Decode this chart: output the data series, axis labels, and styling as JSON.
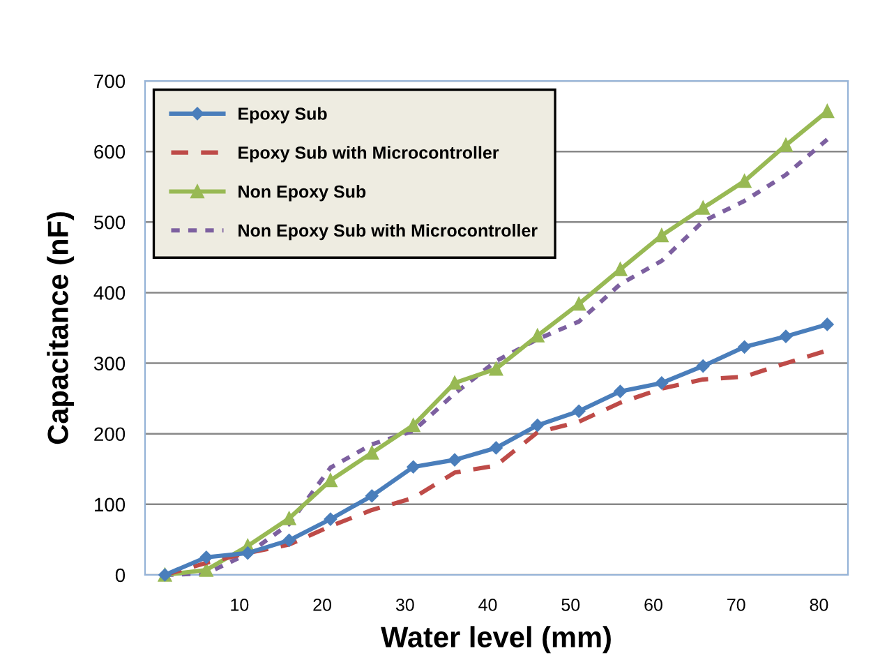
{
  "chart_data": {
    "type": "line",
    "xlabel": "Water level (mm)",
    "ylabel": "Capacitance (nF)",
    "x": [
      1,
      6,
      11,
      16,
      21,
      26,
      31,
      36,
      41,
      46,
      51,
      56,
      61,
      66,
      71,
      76,
      81
    ],
    "xlim": [
      -1.4,
      83.5
    ],
    "xticks": [
      10,
      20,
      30,
      40,
      50,
      60,
      70,
      80
    ],
    "ylim": [
      0,
      700
    ],
    "yticks": [
      0,
      100,
      200,
      300,
      400,
      500,
      600,
      700
    ],
    "grid": "y",
    "legend": "top left",
    "series": [
      {
        "name": "Epoxy Sub",
        "color": "#4a7ebb",
        "marker": "diamond",
        "line_style": "solid",
        "values": [
          0,
          25,
          31,
          49,
          79,
          112,
          153,
          163,
          180,
          212,
          232,
          260,
          272,
          296,
          323,
          338,
          355
        ]
      },
      {
        "name": "Epoxy Sub with Microcontroller",
        "color": "#be4b48",
        "marker": "none",
        "line_style": "dashed",
        "values": [
          0,
          17,
          31,
          43,
          69,
          92,
          109,
          145,
          155,
          202,
          217,
          244,
          264,
          277,
          281,
          300,
          318
        ]
      },
      {
        "name": "Non Epoxy Sub",
        "color": "#98b954",
        "marker": "triangle",
        "line_style": "solid",
        "values": [
          0,
          7,
          41,
          80,
          134,
          173,
          212,
          272,
          292,
          339,
          384,
          433,
          481,
          520,
          558,
          609,
          657
        ]
      },
      {
        "name": "Non Epoxy Sub with Microcontroller",
        "color": "#7d60a0",
        "marker": "none",
        "line_style": "dotted",
        "values": [
          0,
          2,
          30,
          72,
          152,
          185,
          204,
          257,
          303,
          334,
          359,
          412,
          445,
          501,
          530,
          567,
          617
        ]
      }
    ]
  }
}
